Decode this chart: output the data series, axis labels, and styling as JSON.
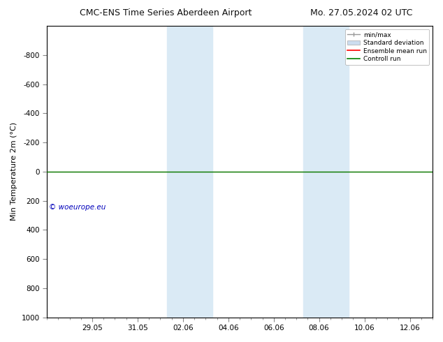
{
  "title_left": "CMC-ENS Time Series Aberdeen Airport",
  "title_right": "Mo. 27.05.2024 02 UTC",
  "ylabel": "Min Temperature 2m (°C)",
  "xlabel": "",
  "xtick_labels": [
    "29.05",
    "31.05",
    "02.06",
    "04.06",
    "06.06",
    "08.06",
    "10.06",
    "12.06"
  ],
  "xtick_positions": [
    2,
    4,
    6,
    8,
    10,
    12,
    14,
    16
  ],
  "xlim": [
    0,
    17
  ],
  "ylim": [
    -1000,
    1000
  ],
  "ytick_positions": [
    -800,
    -600,
    -400,
    -200,
    0,
    200,
    400,
    600,
    800,
    1000
  ],
  "ytick_labels": [
    "-800",
    "-600",
    "-400",
    "-200",
    "0",
    "200",
    "400",
    "600",
    "800",
    "1000"
  ],
  "shaded_regions": [
    {
      "xstart": 5.3,
      "xend": 7.3,
      "color": "#daeaf5"
    },
    {
      "xstart": 11.3,
      "xend": 13.3,
      "color": "#daeaf5"
    }
  ],
  "green_line_y": 0,
  "red_line_y": 0,
  "watermark": "© woeurope.eu",
  "watermark_color": "#0000bb",
  "legend_entries": [
    "min/max",
    "Standard deviation",
    "Ensemble mean run",
    "Controll run"
  ],
  "legend_line_colors": [
    "#999999",
    "#ccddef",
    "#ff0000",
    "#008000"
  ],
  "bg_color": "#ffffff",
  "plot_bg_color": "#ffffff",
  "border_color": "#000000",
  "x_num_start": 0,
  "x_num_end": 17,
  "title_fontsize": 9,
  "tick_fontsize": 7.5,
  "ylabel_fontsize": 8
}
